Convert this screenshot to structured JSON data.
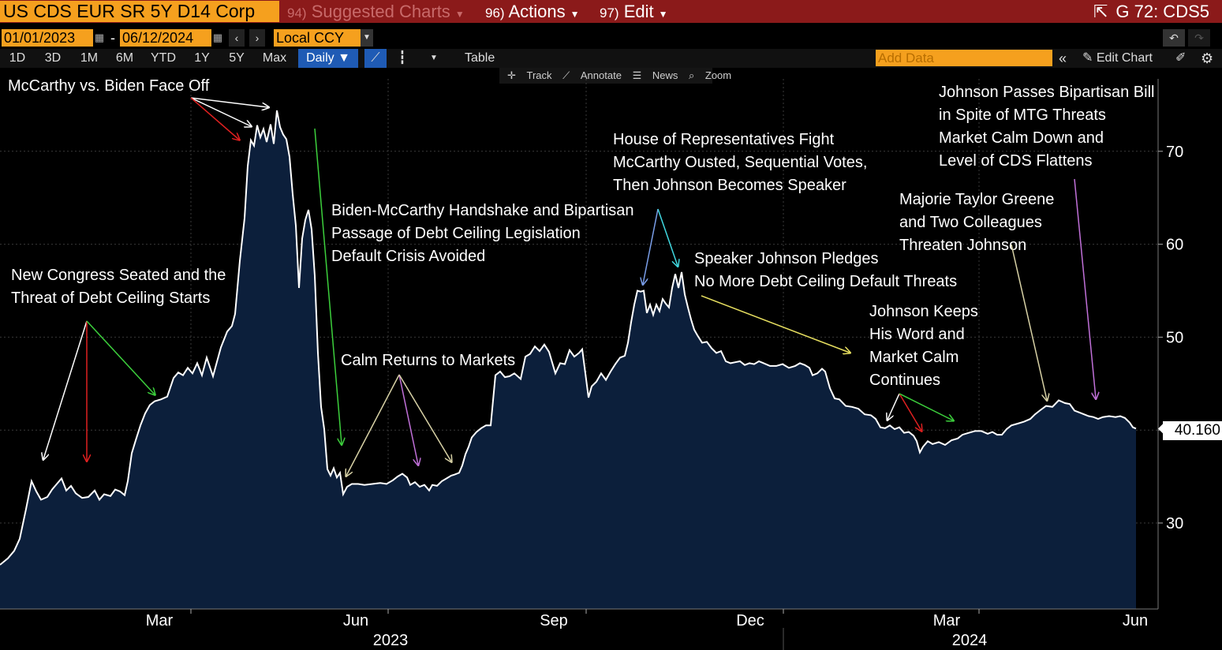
{
  "header": {
    "security": "US CDS EUR SR 5Y D14 Corp",
    "menu_suggested_num": "94)",
    "menu_suggested": "Suggested Charts",
    "menu_actions_num": "96)",
    "menu_actions": "Actions",
    "menu_edit_num": "97)",
    "menu_edit": "Edit",
    "right_title": "G 72: CDS5"
  },
  "controls": {
    "start_date": "01/01/2023",
    "date_sep": "-",
    "end_date": "06/12/2024",
    "currency": "Local CCY",
    "periods": [
      "1D",
      "3D",
      "1M",
      "6M",
      "YTD",
      "1Y",
      "5Y",
      "Max"
    ],
    "frequency": "Daily ▼",
    "table_label": "Table",
    "add_data_placeholder": "Add Data",
    "edit_chart": "Edit Chart",
    "track": "Track",
    "annotate": "Annotate",
    "news": "News",
    "zoom": "Zoom"
  },
  "colors": {
    "header_bg": "#8b1a1a",
    "accent_orange": "#f5a01e",
    "area_fill": "#0c1f3b",
    "line": "#ffffff",
    "active_blue": "#1f5bb5"
  },
  "last_value": "40.160",
  "chart_data": {
    "type": "area",
    "title": "",
    "ylim": [
      20,
      86
    ],
    "y_ticks": [
      30,
      40,
      50,
      60,
      70
    ],
    "y_tick_labels": [
      "30",
      "40",
      "50",
      "60",
      "70"
    ],
    "x_tick_labels": [
      "Mar",
      "Jun",
      "Sep",
      "Dec",
      "Mar",
      "Jun"
    ],
    "year_labels": [
      "2023",
      "2024"
    ],
    "grid": true,
    "last_value": 40.16,
    "series": [
      {
        "values": [
          [
            0,
            25.5
          ],
          [
            10,
            26.2
          ],
          [
            18,
            27.0
          ],
          [
            25,
            28.3
          ],
          [
            33,
            31.5
          ],
          [
            40,
            34.5
          ],
          [
            46,
            33.4
          ],
          [
            52,
            32.5
          ],
          [
            60,
            32.8
          ],
          [
            66,
            33.6
          ],
          [
            72,
            34.2
          ],
          [
            78,
            34.8
          ],
          [
            84,
            33.5
          ],
          [
            90,
            34.0
          ],
          [
            96,
            33.2
          ],
          [
            104,
            32.7
          ],
          [
            112,
            32.8
          ],
          [
            120,
            33.5
          ],
          [
            126,
            32.5
          ],
          [
            132,
            33.1
          ],
          [
            140,
            32.9
          ],
          [
            146,
            33.6
          ],
          [
            152,
            33.4
          ],
          [
            158,
            33.0
          ],
          [
            162,
            34.5
          ],
          [
            167,
            37.5
          ],
          [
            172,
            38.9
          ],
          [
            178,
            40.5
          ],
          [
            184,
            41.8
          ],
          [
            190,
            42.7
          ],
          [
            196,
            43.1
          ],
          [
            204,
            43.3
          ],
          [
            212,
            43.6
          ],
          [
            220,
            45.6
          ],
          [
            226,
            46.2
          ],
          [
            232,
            45.9
          ],
          [
            238,
            46.7
          ],
          [
            244,
            46.1
          ],
          [
            250,
            47.2
          ],
          [
            256,
            45.9
          ],
          [
            262,
            47.8
          ],
          [
            270,
            45.8
          ],
          [
            280,
            48.9
          ],
          [
            288,
            50.6
          ],
          [
            294,
            51.2
          ],
          [
            298,
            52.5
          ],
          [
            304,
            58.2
          ],
          [
            310,
            62.8
          ],
          [
            314,
            68.4
          ],
          [
            318,
            71.2
          ],
          [
            322,
            70.6
          ],
          [
            326,
            72.8
          ],
          [
            330,
            71.5
          ],
          [
            334,
            72.4
          ],
          [
            338,
            71.0
          ],
          [
            343,
            72.9
          ],
          [
            347,
            70.8
          ],
          [
            351,
            74.4
          ],
          [
            355,
            72.6
          ],
          [
            359,
            71.8
          ],
          [
            363,
            71.3
          ],
          [
            367,
            69.4
          ],
          [
            371,
            65.4
          ],
          [
            375,
            62.0
          ],
          [
            379,
            55.3
          ],
          [
            383,
            60.6
          ],
          [
            387,
            62.6
          ],
          [
            391,
            63.7
          ],
          [
            395,
            61.6
          ],
          [
            399,
            56.6
          ],
          [
            403,
            48.3
          ],
          [
            407,
            42.5
          ],
          [
            411,
            40.1
          ],
          [
            415,
            35.8
          ],
          [
            419,
            35.1
          ],
          [
            423,
            35.9
          ],
          [
            427,
            34.9
          ],
          [
            431,
            35.4
          ],
          [
            435,
            33.1
          ],
          [
            440,
            33.9
          ],
          [
            446,
            34.2
          ],
          [
            454,
            34.2
          ],
          [
            462,
            34.1
          ],
          [
            472,
            34.2
          ],
          [
            482,
            34.3
          ],
          [
            490,
            34.2
          ],
          [
            498,
            34.6
          ],
          [
            504,
            35.0
          ],
          [
            510,
            35.3
          ],
          [
            516,
            34.9
          ],
          [
            520,
            34.1
          ],
          [
            526,
            34.4
          ],
          [
            532,
            33.9
          ],
          [
            538,
            34.1
          ],
          [
            544,
            33.5
          ],
          [
            548,
            34.1
          ],
          [
            554,
            34.0
          ],
          [
            560,
            34.5
          ],
          [
            566,
            34.8
          ],
          [
            572,
            35.1
          ],
          [
            576,
            35.2
          ],
          [
            582,
            35.4
          ],
          [
            586,
            36.2
          ],
          [
            590,
            37.4
          ],
          [
            594,
            38.2
          ],
          [
            598,
            39.2
          ],
          [
            604,
            39.8
          ],
          [
            610,
            40.2
          ],
          [
            616,
            40.5
          ],
          [
            622,
            40.5
          ],
          [
            628,
            45.9
          ],
          [
            634,
            46.3
          ],
          [
            640,
            45.7
          ],
          [
            646,
            45.8
          ],
          [
            652,
            46.1
          ],
          [
            660,
            45.5
          ],
          [
            666,
            47.9
          ],
          [
            672,
            48.2
          ],
          [
            678,
            49.0
          ],
          [
            684,
            48.5
          ],
          [
            690,
            49.2
          ],
          [
            696,
            48.4
          ],
          [
            704,
            46.1
          ],
          [
            710,
            47.2
          ],
          [
            716,
            47.1
          ],
          [
            722,
            48.6
          ],
          [
            728,
            47.9
          ],
          [
            734,
            48.3
          ],
          [
            738,
            48.7
          ],
          [
            742,
            46.1
          ],
          [
            746,
            43.5
          ],
          [
            750,
            44.7
          ],
          [
            756,
            45.2
          ],
          [
            762,
            46.1
          ],
          [
            768,
            45.4
          ],
          [
            774,
            46.3
          ],
          [
            780,
            47.1
          ],
          [
            786,
            47.8
          ],
          [
            792,
            48.0
          ],
          [
            796,
            49.4
          ],
          [
            800,
            51.6
          ],
          [
            804,
            53.5
          ],
          [
            808,
            55.0
          ],
          [
            812,
            54.9
          ],
          [
            816,
            55.0
          ],
          [
            820,
            52.6
          ],
          [
            824,
            53.5
          ],
          [
            828,
            52.4
          ],
          [
            832,
            53.5
          ],
          [
            836,
            52.8
          ],
          [
            840,
            54.1
          ],
          [
            844,
            53.6
          ],
          [
            848,
            53.2
          ],
          [
            852,
            55.3
          ],
          [
            856,
            56.8
          ],
          [
            860,
            55.3
          ],
          [
            864,
            57.0
          ],
          [
            868,
            54.6
          ],
          [
            872,
            53.2
          ],
          [
            876,
            51.9
          ],
          [
            880,
            50.8
          ],
          [
            884,
            50.2
          ],
          [
            890,
            49.4
          ],
          [
            896,
            49.5
          ],
          [
            902,
            48.8
          ],
          [
            908,
            48.3
          ],
          [
            914,
            48.5
          ],
          [
            920,
            47.4
          ],
          [
            926,
            47.2
          ],
          [
            932,
            47.3
          ],
          [
            938,
            47.4
          ],
          [
            944,
            47.0
          ],
          [
            950,
            47.2
          ],
          [
            956,
            47.1
          ],
          [
            962,
            47.4
          ],
          [
            968,
            47.2
          ],
          [
            976,
            46.9
          ],
          [
            984,
            46.9
          ],
          [
            992,
            47.1
          ],
          [
            1000,
            46.7
          ],
          [
            1008,
            46.9
          ],
          [
            1014,
            47.2
          ],
          [
            1020,
            47.0
          ],
          [
            1026,
            46.7
          ],
          [
            1030,
            45.9
          ],
          [
            1036,
            46.1
          ],
          [
            1042,
            46.6
          ],
          [
            1046,
            46.3
          ],
          [
            1052,
            44.5
          ],
          [
            1058,
            43.4
          ],
          [
            1064,
            43.3
          ],
          [
            1072,
            42.6
          ],
          [
            1080,
            42.5
          ],
          [
            1088,
            42.3
          ],
          [
            1096,
            41.7
          ],
          [
            1104,
            41.6
          ],
          [
            1110,
            41.2
          ],
          [
            1116,
            40.3
          ],
          [
            1122,
            40.2
          ],
          [
            1128,
            40.5
          ],
          [
            1134,
            40.1
          ],
          [
            1140,
            40.3
          ],
          [
            1146,
            39.7
          ],
          [
            1152,
            39.8
          ],
          [
            1158,
            39.4
          ],
          [
            1162,
            38.8
          ],
          [
            1166,
            37.6
          ],
          [
            1170,
            38.2
          ],
          [
            1176,
            38.8
          ],
          [
            1182,
            38.5
          ],
          [
            1190,
            38.7
          ],
          [
            1198,
            38.4
          ],
          [
            1206,
            38.9
          ],
          [
            1214,
            39.1
          ],
          [
            1220,
            39.5
          ],
          [
            1228,
            39.7
          ],
          [
            1236,
            39.9
          ],
          [
            1244,
            39.9
          ],
          [
            1252,
            39.6
          ],
          [
            1258,
            39.8
          ],
          [
            1264,
            39.5
          ],
          [
            1270,
            39.5
          ],
          [
            1276,
            40.1
          ],
          [
            1282,
            40.5
          ],
          [
            1290,
            40.7
          ],
          [
            1298,
            40.9
          ],
          [
            1306,
            41.2
          ],
          [
            1312,
            41.7
          ],
          [
            1318,
            42.1
          ],
          [
            1326,
            42.6
          ],
          [
            1334,
            42.5
          ],
          [
            1342,
            43.2
          ],
          [
            1350,
            42.9
          ],
          [
            1356,
            42.8
          ],
          [
            1362,
            42.1
          ],
          [
            1368,
            41.9
          ],
          [
            1374,
            41.7
          ],
          [
            1380,
            41.5
          ],
          [
            1386,
            41.4
          ],
          [
            1392,
            41.2
          ],
          [
            1398,
            41.4
          ],
          [
            1406,
            41.5
          ],
          [
            1414,
            41.4
          ],
          [
            1420,
            41.5
          ],
          [
            1426,
            41.3
          ],
          [
            1432,
            40.8
          ],
          [
            1436,
            40.3
          ],
          [
            1440,
            40.16
          ]
        ]
      }
    ],
    "annotations": [
      "McCarthy vs. Biden Face Off",
      "New Congress Seated and the",
      "Threat of Debt Ceiling Starts",
      "Biden-McCarthy Handshake and Bipartisan",
      "Passage of Debt Ceiling Legislation",
      "Default Crisis Avoided",
      "Calm Returns to Markets",
      "House of Representatives Fight",
      "McCarthy Ousted, Sequential Votes,",
      "Then Johnson Becomes Speaker",
      "Speaker Johnson Pledges",
      "No More Debt Ceiling Default Threats",
      "Johnson Keeps",
      "His Word and",
      "Market Calm",
      "Continues",
      "Majorie Taylor Greene",
      "and Two Colleagues",
      "Threaten Johnson",
      "Johnson Passes Bipartisan Bill",
      "in Spite of MTG Threats",
      "Market Calm Down and",
      "Level of CDS Flattens"
    ]
  }
}
